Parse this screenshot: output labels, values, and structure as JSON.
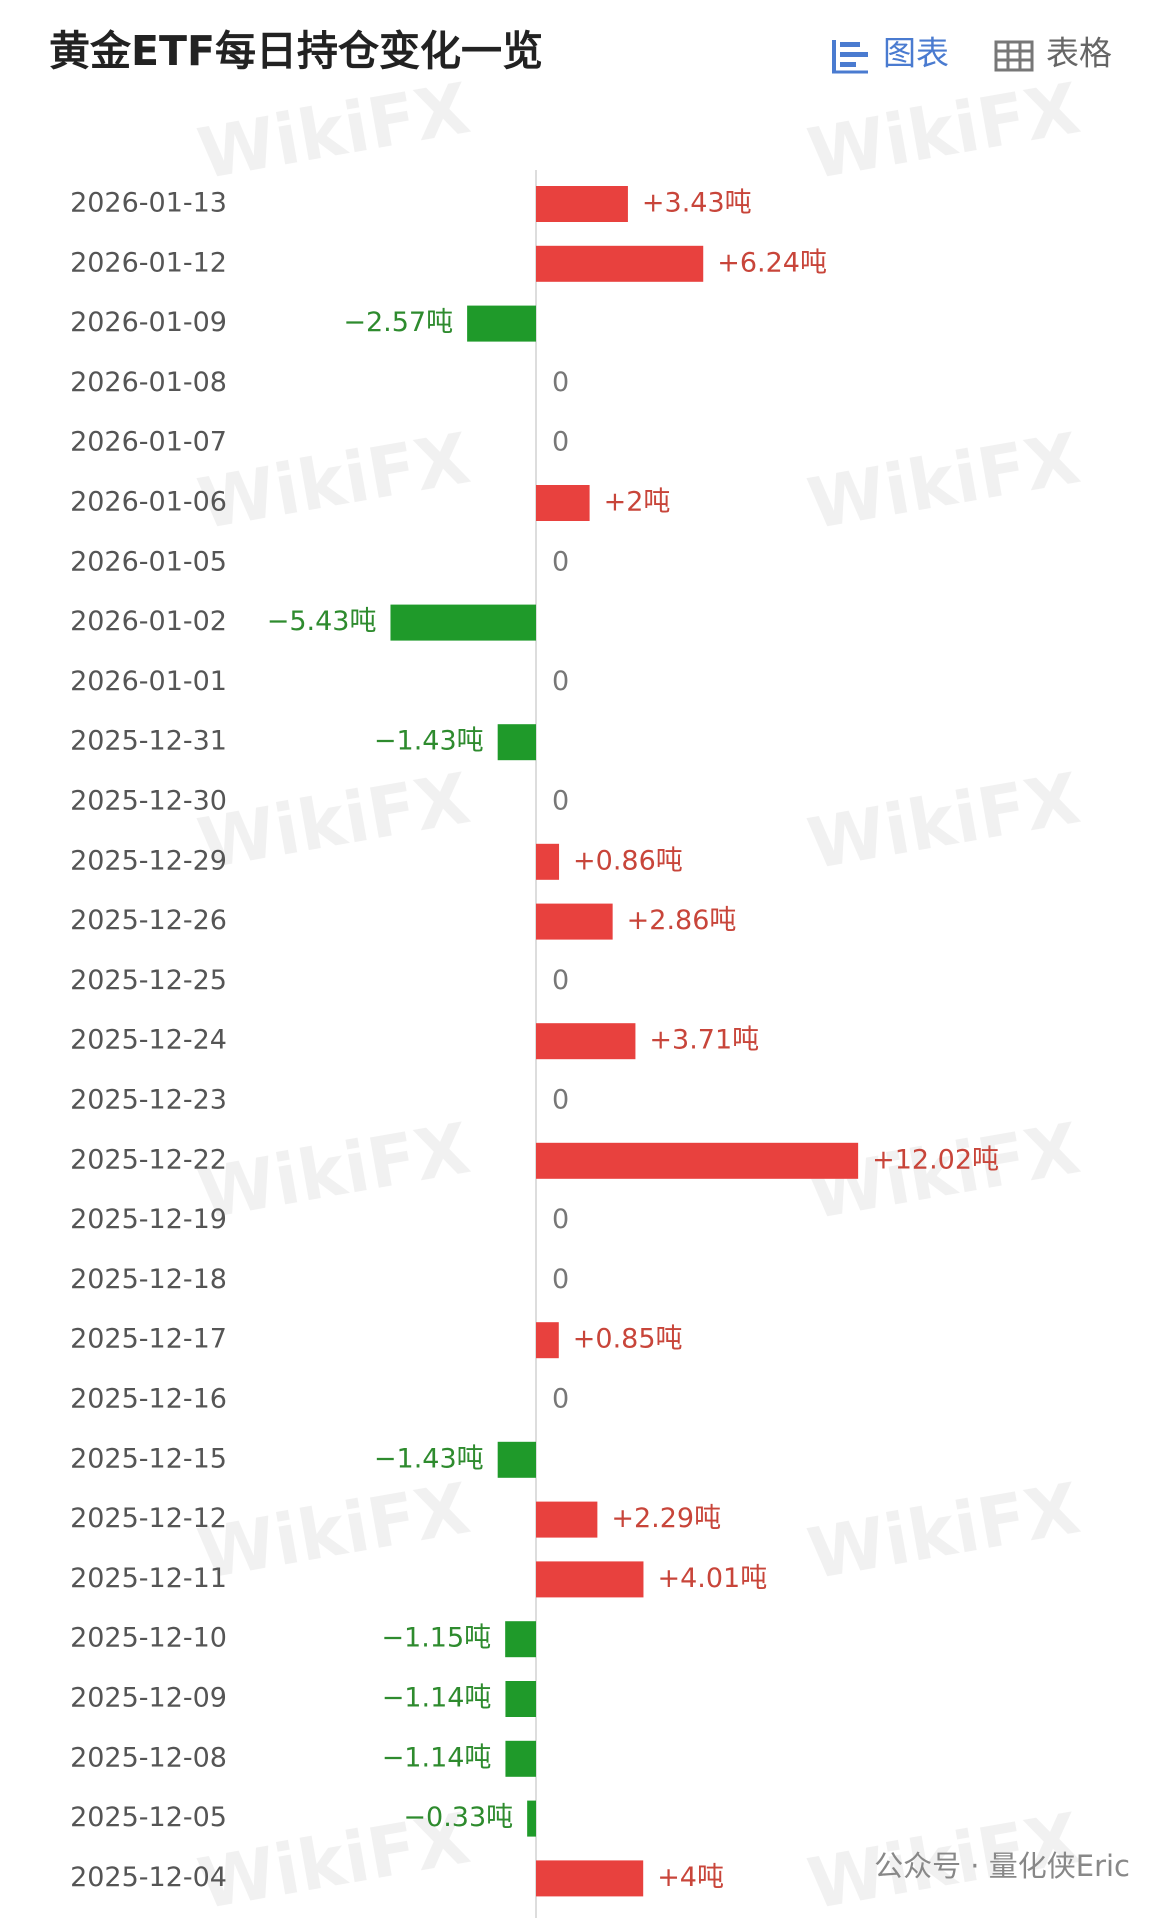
{
  "header": {
    "title": "黄金ETF每日持仓变化一览",
    "tabs": [
      "图表",
      "表格"
    ]
  },
  "watermarks": [
    "WikiFX",
    "公众号 · 量化侠Eric"
  ],
  "chart_data": {
    "type": "bar",
    "orientation": "horizontal",
    "categories": [
      "2026-01-13",
      "2026-01-12",
      "2026-01-09",
      "2026-01-08",
      "2026-01-07",
      "2026-01-06",
      "2026-01-05",
      "2026-01-02",
      "2026-01-01",
      "2025-12-31",
      "2025-12-30",
      "2025-12-29",
      "2025-12-26",
      "2025-12-25",
      "2025-12-24",
      "2025-12-23",
      "2025-12-22",
      "2025-12-19",
      "2025-12-18",
      "2025-12-17",
      "2025-12-16",
      "2025-12-15",
      "2025-12-12",
      "2025-12-11",
      "2025-12-10",
      "2025-12-09",
      "2025-12-08",
      "2025-12-05",
      "2025-12-04"
    ],
    "values": [
      3.43,
      6.24,
      -2.57,
      0,
      0,
      2,
      0,
      -5.43,
      0,
      -1.43,
      0,
      0.86,
      2.86,
      0,
      3.71,
      0,
      12.02,
      0,
      0,
      0.85,
      0,
      -1.43,
      2.29,
      4.01,
      -1.15,
      -1.14,
      -1.14,
      -0.33,
      4
    ],
    "value_labels": [
      "+3.43吨",
      "+6.24吨",
      "−2.57吨",
      "0",
      "0",
      "+2吨",
      "0",
      "−5.43吨",
      "0",
      "−1.43吨",
      "0",
      "+0.86吨",
      "+2.86吨",
      "0",
      "+3.71吨",
      "0",
      "+12.02吨",
      "0",
      "0",
      "+0.85吨",
      "0",
      "−1.43吨",
      "+2.29吨",
      "+4.01吨",
      "−1.15吨",
      "−1.14吨",
      "−1.14吨",
      "−0.33吨",
      "+4吨"
    ],
    "positive_color": "#e8413e",
    "negative_color": "#1f9a2a"
  }
}
